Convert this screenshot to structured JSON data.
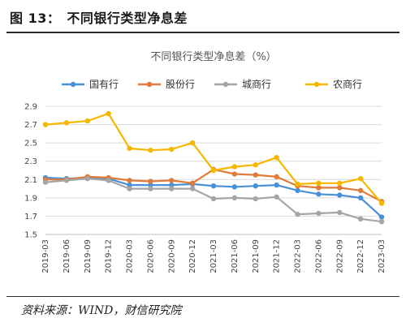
{
  "figure": {
    "label": "图 13：",
    "heading": "不同银行类型净息差",
    "source": "资料来源：WIND，财信研究院"
  },
  "chart_data": {
    "type": "line",
    "title": "不同银行类型净息差（%）",
    "categories": [
      "2019-03",
      "2019-06",
      "2019-09",
      "2019-12",
      "2020-03",
      "2020-06",
      "2020-09",
      "2020-12",
      "2021-03",
      "2021-06",
      "2021-09",
      "2021-12",
      "2022-03",
      "2022-06",
      "2022-09",
      "2022-12",
      "2023-03"
    ],
    "ylim": [
      1.5,
      2.9
    ],
    "yticks": [
      "2.9",
      "2.7",
      "2.5",
      "2.3",
      "2.1",
      "1.9",
      "1.7",
      "1.5"
    ],
    "grid": true,
    "legend_position": "top",
    "series": [
      {
        "name": "国有行",
        "color": "#4a90d9",
        "values": [
          2.12,
          2.11,
          2.12,
          2.11,
          2.04,
          2.04,
          2.04,
          2.05,
          2.03,
          2.02,
          2.03,
          2.04,
          1.98,
          1.94,
          1.93,
          1.9,
          1.69
        ]
      },
      {
        "name": "股份行",
        "color": "#e07b39",
        "values": [
          2.1,
          2.1,
          2.13,
          2.12,
          2.09,
          2.08,
          2.09,
          2.06,
          2.21,
          2.16,
          2.15,
          2.13,
          2.03,
          2.01,
          2.01,
          1.98,
          1.86
        ]
      },
      {
        "name": "城商行",
        "color": "#a5a5a5",
        "values": [
          2.07,
          2.09,
          2.11,
          2.09,
          2.0,
          2.0,
          2.0,
          2.0,
          1.89,
          1.9,
          1.89,
          1.91,
          1.72,
          1.73,
          1.74,
          1.67,
          1.64
        ]
      },
      {
        "name": "农商行",
        "color": "#f5b800",
        "values": [
          2.7,
          2.72,
          2.74,
          2.82,
          2.44,
          2.42,
          2.43,
          2.5,
          2.2,
          2.24,
          2.26,
          2.34,
          2.05,
          2.06,
          2.06,
          2.11,
          1.84
        ]
      }
    ]
  }
}
